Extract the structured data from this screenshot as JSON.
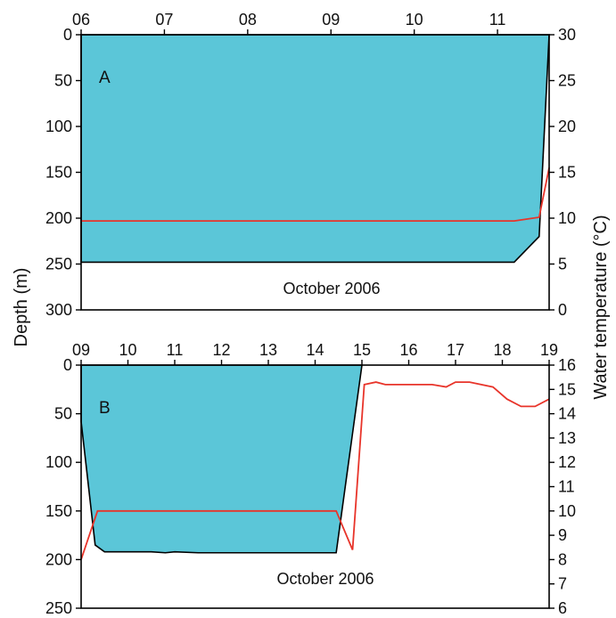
{
  "figure": {
    "left_axis_title": "Depth (m)",
    "right_axis_title": "Water temperature (°C)",
    "colors": {
      "depth_fill": "#5bc6d8",
      "temperature_line": "#e8342a",
      "axis": "#000000"
    }
  },
  "chart_data": [
    {
      "type": "area",
      "panel_label": "A",
      "caption": "October 2006",
      "x_ticks": [
        "06",
        "07",
        "08",
        "09",
        "10",
        "11"
      ],
      "xlim": [
        6,
        11.62
      ],
      "y_left": {
        "label": "Depth (m)",
        "ticks": [
          0,
          50,
          100,
          150,
          200,
          250,
          300
        ],
        "ylim": [
          0,
          300
        ],
        "inverted": true
      },
      "y_right": {
        "label": "Water temperature (°C)",
        "ticks": [
          0,
          5,
          10,
          15,
          20,
          25,
          30
        ],
        "ylim": [
          0,
          30
        ]
      },
      "series": [
        {
          "role": "depth",
          "axis": "left",
          "x": [
            6,
            11.2,
            11.5,
            11.62
          ],
          "values": [
            248,
            248,
            220,
            0
          ]
        },
        {
          "role": "temperature",
          "axis": "right",
          "x": [
            6,
            11.2,
            11.5,
            11.62
          ],
          "values": [
            9.7,
            9.7,
            10.1,
            15.5
          ]
        }
      ]
    },
    {
      "type": "area",
      "panel_label": "B",
      "caption": "October 2006",
      "x_ticks": [
        "09",
        "10",
        "11",
        "12",
        "13",
        "14",
        "15",
        "16",
        "17",
        "18",
        "19"
      ],
      "xlim": [
        9,
        19
      ],
      "y_left": {
        "label": "Depth (m)",
        "ticks": [
          0,
          50,
          100,
          150,
          200,
          250
        ],
        "ylim": [
          0,
          250
        ],
        "inverted": true
      },
      "y_right": {
        "label": "Water temperature (°C)",
        "ticks": [
          6,
          7,
          8,
          9,
          10,
          11,
          12,
          13,
          14,
          15,
          16
        ],
        "ylim": [
          6,
          16
        ]
      },
      "series": [
        {
          "role": "depth",
          "axis": "left",
          "x": [
            9,
            9.3,
            9.5,
            10.5,
            10.8,
            11.0,
            11.5,
            12.5,
            13.5,
            14.45,
            14.8,
            15.0
          ],
          "values": [
            58,
            185,
            192,
            192,
            193,
            192,
            193,
            193,
            193,
            193,
            70,
            0
          ]
        },
        {
          "role": "temperature",
          "axis": "right",
          "x": [
            9,
            9.35,
            14.45,
            14.8,
            15.05,
            15.3,
            15.5,
            16.5,
            16.8,
            17.0,
            17.3,
            17.8,
            18.1,
            18.4,
            18.7,
            19
          ],
          "values": [
            8.0,
            10.0,
            10.0,
            8.4,
            15.2,
            15.3,
            15.2,
            15.2,
            15.1,
            15.3,
            15.3,
            15.1,
            14.6,
            14.3,
            14.3,
            14.6
          ]
        }
      ]
    }
  ]
}
